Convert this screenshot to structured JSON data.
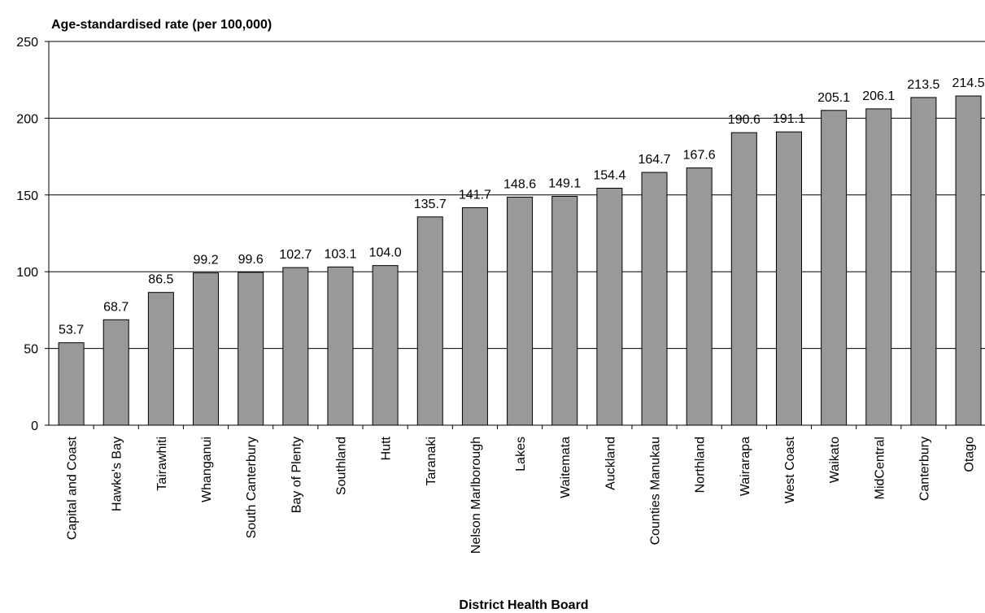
{
  "chart_data": {
    "type": "bar",
    "title": "",
    "ylabel": "Age-standardised rate (per 100,000)",
    "xlabel": "District Health Board",
    "ylim": [
      0,
      250
    ],
    "yticks": [
      0,
      50,
      100,
      150,
      200,
      250
    ],
    "grid": true,
    "legend": "none",
    "bar_color": "#999999",
    "categories": [
      "Capital and Coast",
      "Hawke's Bay",
      "Tairawhiti",
      "Whanganui",
      "South Canterbury",
      "Bay of Plenty",
      "Southland",
      "Hutt",
      "Taranaki",
      "Nelson Marlborough",
      "Lakes",
      "Waitemata",
      "Auckland",
      "Counties Manukau",
      "Northland",
      "Wairarapa",
      "West Coast",
      "Waikato",
      "MidCentral",
      "Canterbury",
      "Otago"
    ],
    "values": [
      53.7,
      68.7,
      86.5,
      99.2,
      99.6,
      102.7,
      103.1,
      104.0,
      135.7,
      141.7,
      148.6,
      149.1,
      154.4,
      164.7,
      167.6,
      190.6,
      191.1,
      205.1,
      206.1,
      213.5,
      214.5
    ],
    "data_labels": [
      "53.7",
      "68.7",
      "86.5",
      "99.2",
      "99.6",
      "102.7",
      "103.1",
      "104.0",
      "135.7",
      "141.7",
      "148.6",
      "149.1",
      "154.4",
      "164.7",
      "167.6",
      "190.6",
      "191.1",
      "205.1",
      "206.1",
      "213.5",
      "214.5"
    ]
  }
}
